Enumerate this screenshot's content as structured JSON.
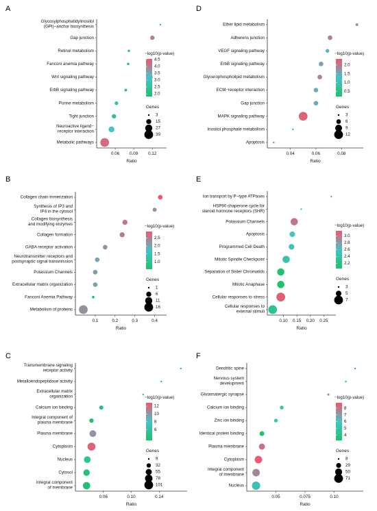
{
  "chart_data": [
    {
      "panel": "A",
      "type": "scatter",
      "categories": [
        "Glycosylphosphatidylinositol\n(GPI)−anchor biosynthesis",
        "Gap junction",
        "Retinol metabolism",
        "Fanconi anemia pathway",
        "Wnt signaling pathway",
        "ErbB signaling pathway",
        "Purine metabolism",
        "Tight junction",
        "Neuroactive ligand−\nreceptor interaction",
        "Metabolic pathways"
      ],
      "x": [
        0.133,
        0.12,
        0.082,
        0.081,
        0.117,
        0.077,
        0.062,
        0.058,
        0.054,
        0.043
      ],
      "genes": [
        3,
        12,
        5,
        5,
        13,
        6,
        9,
        12,
        19,
        39
      ],
      "p": [
        2.1,
        3.95,
        2.2,
        2.3,
        4.2,
        2.4,
        2.5,
        2.3,
        3.15,
        4.3
      ],
      "xticks": [
        0.06,
        0.09,
        0.12
      ],
      "xlim": [
        0.03,
        0.143
      ],
      "xlabel": "Ratio",
      "colorbar_title": "−log10(p-value)",
      "colorbar_ticks": [
        2.0,
        2.5,
        3.0,
        3.5,
        4.0,
        4.5
      ],
      "colorbar_range": [
        1.8,
        4.55
      ],
      "size_title": "Genes",
      "size_legend": [
        3,
        15,
        27,
        39
      ]
    },
    {
      "panel": "B",
      "type": "scatter",
      "categories": [
        "Collagen chain trimerization",
        "Synthesis of IP3 and\nIP4 in the cytosol",
        "Collagen biosynthesis\nand modifying enzymes",
        "Collagen formation",
        "GABA receptor activation",
        "Neurotransmitter receptors and\npostsynaptic signal transmission",
        "Potassium Channels",
        "Extracellular matrix organization",
        "Fanconi Anemia Pathway",
        "Metabolism of proteins"
      ],
      "x": [
        0.428,
        0.4,
        0.25,
        0.236,
        0.15,
        0.11,
        0.1,
        0.1,
        0.09,
        0.04
      ],
      "genes": [
        5,
        4,
        6,
        6,
        5,
        5,
        5,
        5,
        2,
        16
      ],
      "p": [
        2.9,
        2.35,
        2.55,
        2.45,
        2.2,
        2.05,
        2.15,
        2.05,
        0.6,
        2.25
      ],
      "xticks": [
        0.1,
        0.2,
        0.3,
        0.4
      ],
      "xlim": [
        0.0,
        0.46
      ],
      "xlabel": "Ratio",
      "colorbar_title": "−log10(p-value)",
      "colorbar_ticks": [
        1.0,
        1.5,
        2.0,
        2.5
      ],
      "colorbar_range": [
        0.55,
        2.9
      ],
      "size_title": "Genes",
      "size_legend": [
        1,
        6,
        11,
        16
      ]
    },
    {
      "panel": "C",
      "type": "scatter",
      "categories": [
        "Transmembrane signaling\nreceptor activity",
        "Metalloendopeptidase activity",
        "Extracellular matrix\norganization",
        "Calcium ion binding",
        "Integral component of\nplasma membrane",
        "Plasma membrane",
        "Cytoplasm",
        "Nucleus",
        "Cytosol",
        "Integral component\nof membrane"
      ],
      "x": [
        0.171,
        0.143,
        0.117,
        0.057,
        0.043,
        0.045,
        0.043,
        0.037,
        0.036,
        0.036
      ],
      "genes": [
        9,
        9,
        9,
        30,
        32,
        65,
        85,
        65,
        60,
        75
      ],
      "p": [
        3.5,
        3.7,
        3.6,
        4.3,
        3.2,
        10.2,
        12.3,
        5.3,
        3.9,
        3.5
      ],
      "xticks": [
        0.06,
        0.1,
        0.14
      ],
      "xlim": [
        0.02,
        0.18
      ],
      "xlabel": "Ratio",
      "colorbar_title": "−log10(p-value)",
      "colorbar_ticks": [
        6,
        8,
        10,
        12
      ],
      "colorbar_range": [
        3.2,
        12.9
      ],
      "size_title": "Genes",
      "size_legend": [
        9,
        32,
        55,
        78,
        101
      ]
    },
    {
      "panel": "D",
      "type": "scatter",
      "categories": [
        "Ether lipid metabolism",
        "Adherens junction",
        "VEGF signaling pathway",
        "ErbB signaling pathway",
        "Glycerophospholipid metabolism",
        "ECM−receptor interaction",
        "Gap junction",
        "MAPK signaling pathway",
        "Inositol phosphate metabolism",
        "Apoptosis"
      ],
      "x": [
        0.092,
        0.071,
        0.069,
        0.064,
        0.063,
        0.06,
        0.06,
        0.05,
        0.042,
        0.027
      ],
      "genes": [
        4,
        6,
        5,
        6,
        6,
        6,
        6,
        12,
        3,
        3
      ],
      "p": [
        1.7,
        1.9,
        1.4,
        1.6,
        1.9,
        1.5,
        1.5,
        2.2,
        0.4,
        0.3
      ],
      "xticks": [
        0.04,
        0.06,
        0.08
      ],
      "xlim": [
        0.022,
        0.097
      ],
      "xlabel": "Ratio",
      "colorbar_title": "−log10(p-value)",
      "colorbar_ticks": [
        0.5,
        1.0,
        1.5,
        2.0
      ],
      "colorbar_range": [
        0.2,
        2.35
      ],
      "size_title": "Genes",
      "size_legend": [
        3,
        6,
        9,
        12
      ]
    },
    {
      "panel": "E",
      "type": "scatter",
      "categories": [
        "Ion transport by P−type ATPases",
        "HSP90 chaperone cycle for\nsteroid hormone receptors (SHR)",
        "Potassium Channels",
        "Apoptosis",
        "Programmed Cell Death",
        "Mitotic Spindle Checkpoint",
        "Separation of Sister Chromatids",
        "Mitotic Anaphase",
        "Cellular responses to stress",
        "Cellular responses to\nexternal stimuli"
      ],
      "x": [
        0.278,
        0.166,
        0.14,
        0.133,
        0.13,
        0.11,
        0.09,
        0.09,
        0.09,
        0.06
      ],
      "genes": [
        3,
        3,
        6,
        5,
        5,
        6,
        6,
        6,
        7,
        7
      ],
      "p": [
        2.9,
        2.5,
        3.0,
        2.6,
        2.5,
        2.45,
        2.1,
        2.0,
        3.1,
        2.3
      ],
      "xticks": [
        0.1,
        0.15,
        0.2,
        0.25
      ],
      "xlim": [
        0.04,
        0.295
      ],
      "xlabel": "Ratio",
      "colorbar_title": "−log10(p-value)",
      "colorbar_ticks": [
        2.2,
        2.4,
        2.6,
        2.8,
        3.0
      ],
      "colorbar_range": [
        2.05,
        3.15
      ],
      "size_title": "Genes",
      "size_legend": [
        3,
        5,
        7
      ]
    },
    {
      "panel": "F",
      "type": "scatter",
      "categories": [
        "Dendritic spine",
        "Nervous system\ndevelopment",
        "Glutamatergic synapse",
        "Calcium ion binding",
        "Zinc ion binding",
        "Identical protein binding",
        "Plasma membrane",
        "Cytoplasm",
        "Integral component\nof membrane",
        "Nucleus"
      ],
      "x": [
        0.118,
        0.11,
        0.095,
        0.055,
        0.05,
        0.038,
        0.038,
        0.035,
        0.033,
        0.033
      ],
      "genes": [
        8,
        8,
        10,
        20,
        20,
        28,
        40,
        55,
        55,
        65
      ],
      "p": [
        3.3,
        3.5,
        8.3,
        4.9,
        5.5,
        3.4,
        8.1,
        8.7,
        7.5,
        5.3
      ],
      "xticks": [
        0.05,
        0.075,
        0.1
      ],
      "xlim": [
        0.025,
        0.125
      ],
      "xlabel": "Ratio",
      "colorbar_title": "−log10(p-value)",
      "colorbar_ticks": [
        4,
        5,
        6,
        7,
        8
      ],
      "colorbar_range": [
        3.2,
        8.8
      ],
      "size_title": "Genes",
      "size_legend": [
        8,
        29,
        50,
        71
      ]
    }
  ]
}
